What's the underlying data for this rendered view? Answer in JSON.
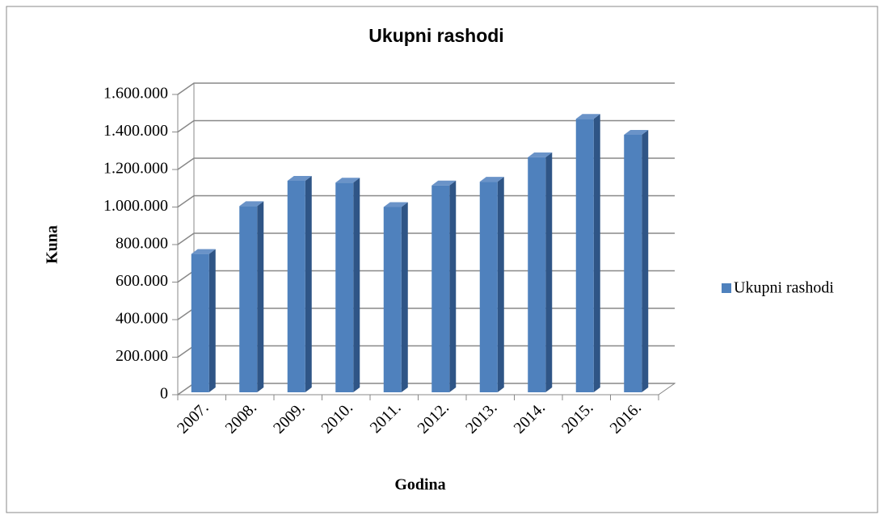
{
  "chart_data": {
    "type": "bar3d",
    "title": "Ukupni rashodi",
    "x_label": "Godina",
    "y_label": "Kuna",
    "categories": [
      "2007.",
      "2008.",
      "2009.",
      "2010.",
      "2011.",
      "2012.",
      "2013.",
      "2014.",
      "2015.",
      "2016."
    ],
    "series": [
      {
        "name": "Ukupni rashodi",
        "color": "#4f81bd",
        "values": [
          750000,
          1005000,
          1140000,
          1130000,
          1000000,
          1115000,
          1135000,
          1265000,
          1470000,
          1385000
        ]
      }
    ],
    "ylim": [
      0,
      1600000
    ],
    "yticks": [
      0,
      {
        "value": 200000,
        "label": "200.000"
      },
      {
        "value": 400000,
        "label": "400.000"
      },
      {
        "value": 600000,
        "label": "600.000"
      },
      {
        "value": 800000,
        "label": "800.000"
      },
      {
        "value": 1000000,
        "label": "1.000.000"
      },
      {
        "value": 1200000,
        "label": "1.200.000"
      },
      {
        "value": 1400000,
        "label": "1.400.000"
      },
      {
        "value": 1600000,
        "label": "1.600.000"
      }
    ],
    "grid": true,
    "legend": "right"
  }
}
